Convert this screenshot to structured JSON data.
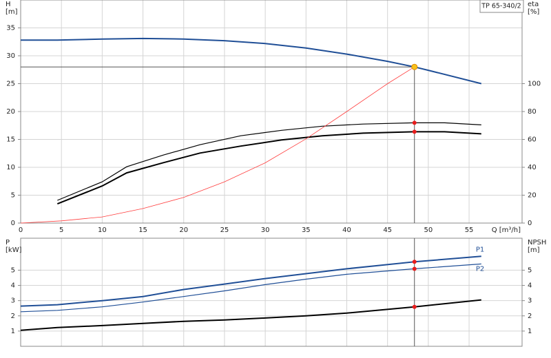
{
  "chart_data": [
    {
      "type": "line",
      "title": "TP 65-340/2",
      "y_label": [
        "H",
        "[m]"
      ],
      "y2_label": [
        "eta",
        "[%]"
      ],
      "x_label": "Q [m³/h]",
      "xlim": [
        0,
        61.5
      ],
      "xticks": [
        0,
        5,
        10,
        15,
        20,
        25,
        30,
        35,
        40,
        45,
        50,
        55
      ],
      "ylim": [
        0,
        40
      ],
      "yticks": [
        0,
        5,
        10,
        15,
        20,
        25,
        30,
        35
      ],
      "y2lim": [
        0,
        160
      ],
      "y2ticks": [
        0,
        20,
        40,
        60,
        80,
        100
      ],
      "grid": true,
      "series": [
        {
          "color": "#1f4e96",
          "weight": "bold",
          "x": [
            0,
            4.5,
            10,
            15,
            20,
            25,
            30,
            35,
            40,
            45,
            48.3,
            50,
            56.5
          ],
          "values": [
            32.8,
            32.8,
            33.0,
            33.1,
            33.0,
            32.7,
            32.2,
            31.4,
            30.3,
            29.0,
            28.0,
            27.4,
            25.0
          ]
        },
        {
          "color": "#000000",
          "weight": "normal",
          "axis": "y2",
          "x": [
            4.5,
            10,
            13,
            17.5,
            22,
            27,
            32,
            37,
            42,
            48.3,
            52,
            56.5
          ],
          "values": [
            16.3,
            29.6,
            40.4,
            48.8,
            56.2,
            62.6,
            66.5,
            69.5,
            71.0,
            71.9,
            71.9,
            70.4
          ]
        },
        {
          "color": "#000000",
          "weight": "bold",
          "axis": "y2",
          "x": [
            4.5,
            10,
            13,
            17.5,
            22,
            27,
            32,
            37,
            42,
            48.3,
            52,
            56.5
          ],
          "values": [
            13.8,
            26.6,
            36.0,
            43.3,
            50.2,
            55.2,
            59.6,
            62.6,
            64.5,
            65.5,
            65.5,
            64.0
          ]
        },
        {
          "color": "#ff3b3b",
          "weight": "thin",
          "x": [
            0,
            5,
            10,
            15,
            20,
            25,
            30,
            35,
            40,
            45,
            48.3
          ],
          "values": [
            0,
            0.4,
            1.1,
            2.6,
            4.6,
            7.4,
            10.8,
            15.1,
            20.0,
            25.0,
            28.0
          ]
        }
      ],
      "points": [
        {
          "x": 48.3,
          "y": 71.9,
          "axis": "y2",
          "color": "#e81c1c"
        },
        {
          "x": 48.3,
          "y": 65.5,
          "axis": "y2",
          "color": "#e81c1c"
        },
        {
          "x": 48.3,
          "y": 28.0,
          "color": "#f7c21b"
        }
      ]
    },
    {
      "type": "line",
      "y_label": [
        "P",
        "[kW]"
      ],
      "y2_label": [
        "NPSH",
        "[m]"
      ],
      "xlim": [
        0,
        61.5
      ],
      "xticks": [
        0,
        5,
        10,
        15,
        20,
        25,
        30,
        35,
        40,
        45,
        50,
        55
      ],
      "ylim": [
        0,
        7.1
      ],
      "yticks": [
        1,
        2,
        3,
        4,
        5
      ],
      "y2lim": [
        0,
        7.1
      ],
      "y2ticks": [
        1,
        2,
        3,
        4,
        5
      ],
      "grid": true,
      "series": [
        {
          "name": "P1",
          "color": "#1f4e96",
          "weight": "bold",
          "x": [
            0,
            4.5,
            10,
            15,
            20,
            25,
            30,
            35,
            40,
            48.3,
            56.5
          ],
          "values": [
            2.64,
            2.73,
            3.0,
            3.27,
            3.73,
            4.09,
            4.45,
            4.77,
            5.09,
            5.55,
            5.91
          ]
        },
        {
          "name": "P2",
          "color": "#1f4e96",
          "weight": "normal",
          "x": [
            0,
            4.5,
            10,
            15,
            20,
            25,
            30,
            35,
            40,
            48.3,
            56.5
          ],
          "values": [
            2.27,
            2.36,
            2.59,
            2.91,
            3.27,
            3.64,
            4.05,
            4.41,
            4.73,
            5.09,
            5.41
          ]
        },
        {
          "color": "#000000",
          "weight": "bold",
          "axis": "y2",
          "x": [
            0,
            4.5,
            10,
            15,
            20,
            25,
            30,
            35,
            40,
            48.3,
            56.5
          ],
          "values": [
            1.05,
            1.23,
            1.36,
            1.5,
            1.64,
            1.73,
            1.86,
            2.0,
            2.18,
            2.59,
            3.05
          ]
        }
      ],
      "points": [
        {
          "x": 48.3,
          "y": 5.55,
          "color": "#e81c1c"
        },
        {
          "x": 48.3,
          "y": 5.09,
          "color": "#e81c1c"
        },
        {
          "x": 48.3,
          "y": 2.59,
          "axis": "y2",
          "color": "#e81c1c"
        }
      ]
    }
  ]
}
